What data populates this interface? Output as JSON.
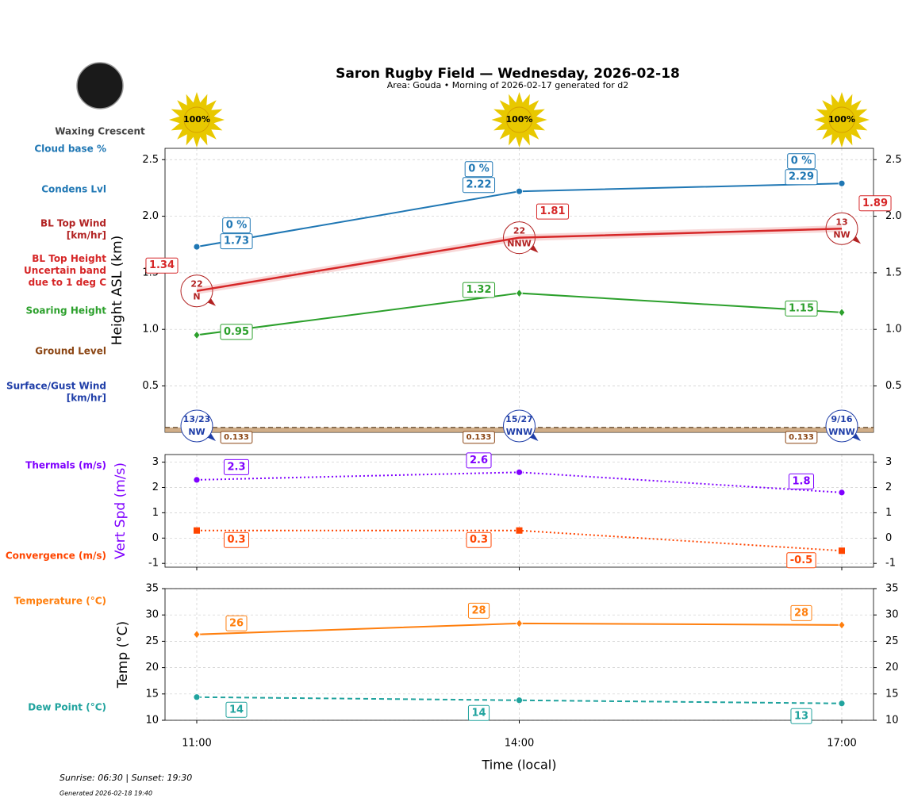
{
  "header": {
    "title": "Saron Rugby Field — Wednesday, 2026-02-18",
    "subtitle": "Area: Gouda • Morning of 2026-02-17 generated for d2",
    "moon_phase": "Waxing Crescent"
  },
  "sunshine": {
    "values": [
      100,
      100,
      100
    ],
    "value_labels": [
      "100%",
      "100%",
      "100%"
    ]
  },
  "chart_data": [
    {
      "type": "line",
      "y_label": "Height ASL (km)",
      "ylim": [
        0.09,
        2.6
      ],
      "yticks": [
        0.5,
        {
          "value": 1,
          "label": "1.0"
        },
        1.5,
        {
          "value": 2,
          "label": "2.0"
        },
        2.5
      ],
      "grid": true,
      "series": [
        {
          "name": "Cloud base %",
          "kind": "labels",
          "color": "#1f77b4",
          "values": [
            0,
            0,
            0
          ],
          "value_labels": [
            "0 %",
            "0 %",
            "0 %"
          ]
        },
        {
          "name": "Condens Lvl",
          "kind": "line",
          "color": "#1f77b4",
          "marker": "o",
          "values": [
            1.73,
            2.22,
            2.29
          ]
        },
        {
          "name": "BL Top Wind\n[km/hr]",
          "kind": "wind",
          "color": "#b22222",
          "values": [
            22,
            22,
            13
          ],
          "directions": [
            "N",
            "NNW",
            "NW"
          ]
        },
        {
          "name": "BL Top Height\nUncertain band\ndue to 1 deg C",
          "kind": "band",
          "color": "#d62728",
          "values": [
            1.34,
            1.81,
            1.89
          ],
          "band_lower": [
            1.31,
            1.78,
            1.86
          ],
          "band_upper": [
            1.37,
            1.84,
            1.92
          ]
        },
        {
          "name": "Soaring Height",
          "kind": "line",
          "color": "#2ca02c",
          "marker": "D",
          "values": [
            0.95,
            1.32,
            1.15
          ]
        },
        {
          "name": "Ground Level",
          "kind": "ground",
          "color": "#8b4513",
          "values": [
            0.133,
            0.133,
            0.133
          ]
        },
        {
          "name": "Surface/Gust Wind\n[km/hr]",
          "kind": "surface_wind",
          "color": "#1f3ea8",
          "values": [
            13,
            15,
            9
          ],
          "gusts": [
            23,
            27,
            16
          ],
          "value_labels": [
            "13/23",
            "15/27",
            "9/16"
          ],
          "directions": [
            "NW",
            "WNW",
            "WNW"
          ]
        }
      ]
    },
    {
      "type": "line",
      "y_label": "Vert Spd (m/s)",
      "y_label_color": "#7f00ff",
      "ylim": [
        -1.15,
        3.3
      ],
      "yticks": [
        -1,
        0,
        1,
        2,
        3
      ],
      "grid": true,
      "series": [
        {
          "name": "Thermals (m/s)",
          "kind": "line",
          "color": "#7f00ff",
          "marker": "o",
          "dash": "dotted",
          "values": [
            2.3,
            2.6,
            1.8
          ]
        },
        {
          "name": "Convergence (m/s)",
          "kind": "line",
          "color": "#ff4500",
          "marker": "s",
          "dash": "dotted",
          "values": [
            0.3,
            0.3,
            -0.5
          ]
        }
      ]
    },
    {
      "type": "line",
      "y_label": "Temp (°C)",
      "ylim": [
        10,
        35
      ],
      "yticks": [
        10,
        15,
        20,
        25,
        30,
        35
      ],
      "grid": true,
      "categories": [
        "11:00",
        "14:00",
        "17:00"
      ],
      "x_label": "Time (local)",
      "series": [
        {
          "name": "Temperature (°C)",
          "kind": "line",
          "color": "#ff7f0e",
          "marker": "D",
          "values": [
            26.3,
            28.4,
            28.1
          ],
          "value_labels": [
            "26",
            "28",
            "28"
          ]
        },
        {
          "name": "Dew Point (°C)",
          "kind": "line",
          "color": "#20a39e",
          "marker": "o",
          "dash": "dashed",
          "values": [
            14.4,
            13.8,
            13.2
          ],
          "value_labels": [
            "14",
            "14",
            "13"
          ]
        }
      ]
    }
  ],
  "footer": {
    "sun_times": "Sunrise: 06:30 | Sunset: 19:30",
    "generated": "Generated 2026-02-18 19:40"
  }
}
